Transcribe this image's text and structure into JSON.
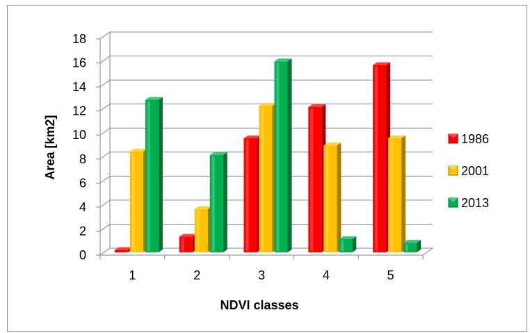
{
  "chart_data": {
    "type": "bar",
    "title": "",
    "xlabel": "NDVI classes",
    "ylabel": "Area [km2]",
    "categories": [
      "1",
      "2",
      "3",
      "4",
      "5"
    ],
    "ylim": [
      0,
      18
    ],
    "yticks": [
      "0",
      "2",
      "4",
      "6",
      "8",
      "10",
      "12",
      "14",
      "16",
      "18"
    ],
    "grid": true,
    "legend_position": "right",
    "series": [
      {
        "name": "1986",
        "color": "#ff0000",
        "values": [
          0.2,
          1.3,
          9.5,
          12.1,
          15.6
        ]
      },
      {
        "name": "2001",
        "color": "#ffc000",
        "values": [
          8.4,
          3.6,
          12.2,
          8.9,
          9.5
        ]
      },
      {
        "name": "2013",
        "color": "#00b050",
        "values": [
          12.7,
          8.1,
          15.9,
          1.1,
          0.8
        ]
      }
    ]
  }
}
